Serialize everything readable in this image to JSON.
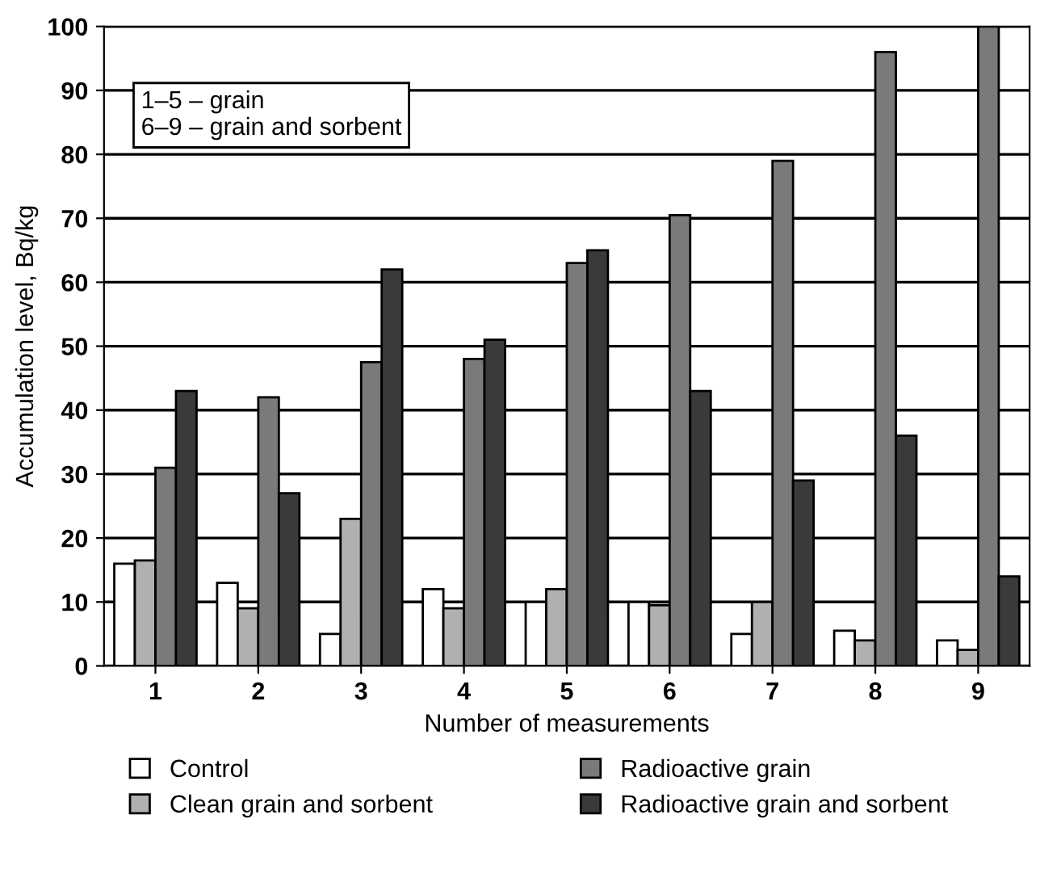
{
  "chart_data": {
    "type": "bar",
    "xlabel": "Number of measurements",
    "ylabel": "Accumulation level, Bq/kg",
    "categories": [
      "1",
      "2",
      "3",
      "4",
      "5",
      "6",
      "7",
      "8",
      "9"
    ],
    "series": [
      {
        "name": "Control",
        "color": "#ffffff",
        "values": [
          16,
          13,
          5,
          12,
          10,
          10,
          5,
          5.5,
          4
        ]
      },
      {
        "name": "Clean grain and sorbent",
        "color": "#b0b0b0",
        "values": [
          16.5,
          9,
          23,
          9,
          12,
          9.5,
          10,
          4,
          2.5
        ]
      },
      {
        "name": "Radioactive grain",
        "color": "#7a7a7a",
        "values": [
          31,
          42,
          47.5,
          48,
          63,
          70.5,
          79,
          96,
          100
        ]
      },
      {
        "name": "Radioactive grain and sorbent",
        "color": "#3a3a3a",
        "values": [
          43,
          27,
          62,
          51,
          65,
          43,
          29,
          36,
          14
        ]
      }
    ],
    "ylim": [
      0,
      100
    ],
    "yticks": [
      0,
      10,
      20,
      30,
      40,
      50,
      60,
      70,
      80,
      90,
      100
    ],
    "grid": "y",
    "legend": "bottom",
    "annotations": [
      "1–5 – grain\n6–9 – grain and sorbent"
    ]
  }
}
